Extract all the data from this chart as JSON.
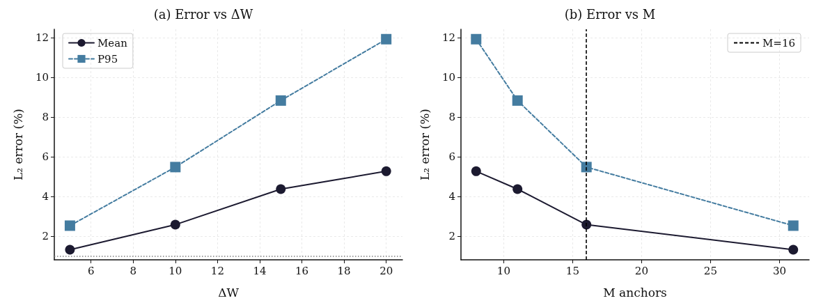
{
  "chart_data": [
    {
      "type": "line",
      "title": "(a) Error vs ΔW",
      "xlabel": "ΔW",
      "ylabel": "L₂ error (%)",
      "x": [
        5,
        10,
        15,
        20
      ],
      "series": [
        {
          "name": "Mean",
          "color": "#1c1a30",
          "values": [
            1.32,
            2.58,
            4.37,
            5.27
          ],
          "marker": "circle",
          "line_style": "solid"
        },
        {
          "name": "P95",
          "color": "#447ca0",
          "values": [
            2.53,
            5.48,
            8.83,
            11.92
          ],
          "marker": "square",
          "line_style": "dashed"
        }
      ],
      "xlim": [
        4.26,
        20.77
      ],
      "xticks": [
        6,
        8,
        10,
        12,
        14,
        16,
        18,
        20
      ],
      "ylim": [
        0.81,
        12.42
      ],
      "yticks": [
        2,
        4,
        6,
        8,
        10,
        12
      ],
      "ref_lines": [
        {
          "axis": "y",
          "value": 1.0,
          "color": "#808080",
          "line_style": "dotted"
        }
      ],
      "grid": true,
      "legend": "top left"
    },
    {
      "type": "line",
      "title": "(b) Error vs M",
      "xlabel": "M anchors",
      "ylabel": "L₂ error (%)",
      "x": [
        8,
        11,
        16,
        31
      ],
      "series": [
        {
          "color": "#1c1a30",
          "values": [
            5.27,
            4.37,
            2.58,
            1.32
          ],
          "marker": "circle",
          "line_style": "solid"
        },
        {
          "color": "#447ca0",
          "values": [
            11.92,
            8.83,
            5.48,
            2.53
          ],
          "marker": "square",
          "line_style": "dashed"
        }
      ],
      "xlim": [
        6.9,
        32.15
      ],
      "xticks": [
        10,
        15,
        20,
        25,
        30
      ],
      "ylim": [
        0.81,
        12.42
      ],
      "yticks": [
        2,
        4,
        6,
        8,
        10,
        12
      ],
      "ref_lines": [
        {
          "axis": "x",
          "value": 16,
          "label": "M=16",
          "color": "#000000",
          "line_style": "dashed"
        }
      ],
      "grid": true,
      "legend": "top right"
    }
  ]
}
